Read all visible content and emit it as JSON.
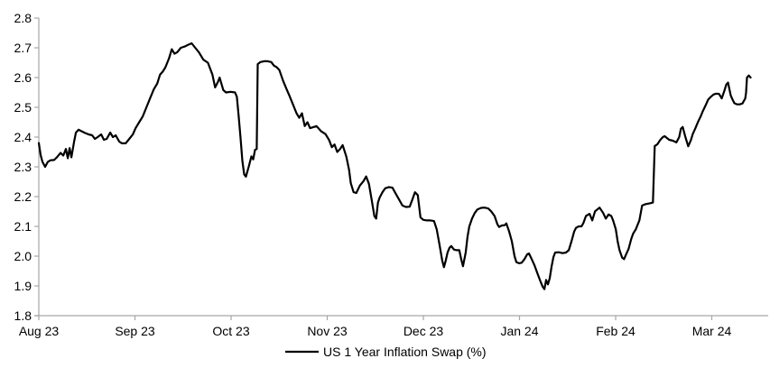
{
  "colors": {
    "line": "#000000",
    "axis": "#a6a6a6",
    "text": "#000000",
    "background": "#ffffff"
  },
  "chart_data": {
    "type": "line",
    "title": "",
    "grid": false,
    "legend_position": "bottom-center",
    "x_unit": "months since 2023-08-01 (0 = Aug 2023, 7 = Mar 2024)",
    "x_ticks": [
      {
        "m": 0,
        "label": "Aug 23"
      },
      {
        "m": 1,
        "label": "Sep 23"
      },
      {
        "m": 2,
        "label": "Oct 23"
      },
      {
        "m": 3,
        "label": "Nov 23"
      },
      {
        "m": 4,
        "label": "Dec 23"
      },
      {
        "m": 5,
        "label": "Jan 24"
      },
      {
        "m": 6,
        "label": "Feb 24"
      },
      {
        "m": 7,
        "label": "Mar 24"
      }
    ],
    "y_axis": {
      "min": 1.8,
      "max": 2.8,
      "tick_step": 0.1,
      "ticks": [
        {
          "v": 2.8,
          "label": "2.8"
        },
        {
          "v": 2.7,
          "label": "2.7"
        },
        {
          "v": 2.6,
          "label": "2.6"
        },
        {
          "v": 2.5,
          "label": "2.5"
        },
        {
          "v": 2.4,
          "label": "2.4"
        },
        {
          "v": 2.3,
          "label": "2.3"
        },
        {
          "v": 2.2,
          "label": "2.2"
        },
        {
          "v": 2.1,
          "label": "2.1"
        },
        {
          "v": 2.0,
          "label": "2.0"
        },
        {
          "v": 1.9,
          "label": "1.9"
        },
        {
          "v": 1.8,
          "label": "1.8"
        }
      ]
    },
    "series": [
      {
        "name": "US 1 Year Inflation Swap (%)",
        "color": "#000000",
        "points": [
          [
            0.0,
            2.38
          ],
          [
            0.019,
            2.34
          ],
          [
            0.038,
            2.317
          ],
          [
            0.066,
            2.3
          ],
          [
            0.094,
            2.317
          ],
          [
            0.122,
            2.322
          ],
          [
            0.16,
            2.323
          ],
          [
            0.188,
            2.332
          ],
          [
            0.226,
            2.347
          ],
          [
            0.254,
            2.338
          ],
          [
            0.282,
            2.36
          ],
          [
            0.301,
            2.329
          ],
          [
            0.32,
            2.363
          ],
          [
            0.339,
            2.332
          ],
          [
            0.367,
            2.385
          ],
          [
            0.386,
            2.415
          ],
          [
            0.414,
            2.425
          ],
          [
            0.442,
            2.42
          ],
          [
            0.48,
            2.414
          ],
          [
            0.517,
            2.409
          ],
          [
            0.555,
            2.406
          ],
          [
            0.583,
            2.394
          ],
          [
            0.612,
            2.4
          ],
          [
            0.649,
            2.409
          ],
          [
            0.677,
            2.391
          ],
          [
            0.706,
            2.394
          ],
          [
            0.743,
            2.415
          ],
          [
            0.771,
            2.4
          ],
          [
            0.8,
            2.406
          ],
          [
            0.837,
            2.385
          ],
          [
            0.865,
            2.379
          ],
          [
            0.903,
            2.379
          ],
          [
            0.941,
            2.394
          ],
          [
            0.978,
            2.409
          ],
          [
            1.007,
            2.43
          ],
          [
            1.044,
            2.45
          ],
          [
            1.082,
            2.47
          ],
          [
            1.119,
            2.5
          ],
          [
            1.157,
            2.53
          ],
          [
            1.195,
            2.56
          ],
          [
            1.232,
            2.58
          ],
          [
            1.261,
            2.61
          ],
          [
            1.289,
            2.62
          ],
          [
            1.317,
            2.635
          ],
          [
            1.355,
            2.665
          ],
          [
            1.383,
            2.695
          ],
          [
            1.411,
            2.68
          ],
          [
            1.439,
            2.685
          ],
          [
            1.477,
            2.7
          ],
          [
            1.524,
            2.705
          ],
          [
            1.552,
            2.71
          ],
          [
            1.59,
            2.715
          ],
          [
            1.627,
            2.7
          ],
          [
            1.665,
            2.685
          ],
          [
            1.712,
            2.66
          ],
          [
            1.759,
            2.65
          ],
          [
            1.806,
            2.61
          ],
          [
            1.834,
            2.567
          ],
          [
            1.863,
            2.585
          ],
          [
            1.881,
            2.6
          ],
          [
            1.919,
            2.558
          ],
          [
            1.947,
            2.55
          ],
          [
            1.994,
            2.552
          ],
          [
            2.041,
            2.55
          ],
          [
            2.06,
            2.535
          ],
          [
            2.079,
            2.47
          ],
          [
            2.098,
            2.4
          ],
          [
            2.117,
            2.32
          ],
          [
            2.136,
            2.275
          ],
          [
            2.154,
            2.267
          ],
          [
            2.183,
            2.3
          ],
          [
            2.211,
            2.335
          ],
          [
            2.23,
            2.325
          ],
          [
            2.249,
            2.357
          ],
          [
            2.267,
            2.36
          ],
          [
            2.277,
            2.645
          ],
          [
            2.305,
            2.652
          ],
          [
            2.343,
            2.655
          ],
          [
            2.38,
            2.655
          ],
          [
            2.418,
            2.652
          ],
          [
            2.446,
            2.64
          ],
          [
            2.474,
            2.635
          ],
          [
            2.502,
            2.625
          ],
          [
            2.54,
            2.59
          ],
          [
            2.578,
            2.56
          ],
          [
            2.606,
            2.54
          ],
          [
            2.643,
            2.51
          ],
          [
            2.681,
            2.48
          ],
          [
            2.709,
            2.465
          ],
          [
            2.737,
            2.48
          ],
          [
            2.766,
            2.437
          ],
          [
            2.794,
            2.45
          ],
          [
            2.822,
            2.43
          ],
          [
            2.86,
            2.434
          ],
          [
            2.888,
            2.437
          ],
          [
            2.935,
            2.42
          ],
          [
            2.982,
            2.41
          ],
          [
            3.02,
            2.39
          ],
          [
            3.048,
            2.366
          ],
          [
            3.076,
            2.375
          ],
          [
            3.104,
            2.35
          ],
          [
            3.133,
            2.36
          ],
          [
            3.161,
            2.373
          ],
          [
            3.198,
            2.335
          ],
          [
            3.227,
            2.29
          ],
          [
            3.245,
            2.245
          ],
          [
            3.274,
            2.215
          ],
          [
            3.302,
            2.212
          ],
          [
            3.339,
            2.237
          ],
          [
            3.377,
            2.252
          ],
          [
            3.405,
            2.268
          ],
          [
            3.434,
            2.243
          ],
          [
            3.462,
            2.19
          ],
          [
            3.49,
            2.135
          ],
          [
            3.509,
            2.126
          ],
          [
            3.528,
            2.18
          ],
          [
            3.546,
            2.197
          ],
          [
            3.575,
            2.215
          ],
          [
            3.603,
            2.228
          ],
          [
            3.641,
            2.232
          ],
          [
            3.678,
            2.23
          ],
          [
            3.716,
            2.208
          ],
          [
            3.753,
            2.187
          ],
          [
            3.782,
            2.17
          ],
          [
            3.819,
            2.165
          ],
          [
            3.857,
            2.166
          ],
          [
            3.885,
            2.19
          ],
          [
            3.913,
            2.215
          ],
          [
            3.942,
            2.205
          ],
          [
            3.97,
            2.13
          ],
          [
            3.998,
            2.122
          ],
          [
            4.036,
            2.12
          ],
          [
            4.073,
            2.12
          ],
          [
            4.111,
            2.118
          ],
          [
            4.139,
            2.09
          ],
          [
            4.167,
            2.04
          ],
          [
            4.196,
            1.985
          ],
          [
            4.214,
            1.963
          ],
          [
            4.233,
            1.985
          ],
          [
            4.252,
            2.012
          ],
          [
            4.271,
            2.028
          ],
          [
            4.29,
            2.034
          ],
          [
            4.318,
            2.022
          ],
          [
            4.346,
            2.02
          ],
          [
            4.374,
            2.02
          ],
          [
            4.393,
            1.99
          ],
          [
            4.412,
            1.966
          ],
          [
            4.44,
            2.012
          ],
          [
            4.459,
            2.065
          ],
          [
            4.478,
            2.1
          ],
          [
            4.506,
            2.126
          ],
          [
            4.534,
            2.145
          ],
          [
            4.562,
            2.157
          ],
          [
            4.6,
            2.162
          ],
          [
            4.638,
            2.163
          ],
          [
            4.675,
            2.16
          ],
          [
            4.704,
            2.151
          ],
          [
            4.741,
            2.135
          ],
          [
            4.769,
            2.108
          ],
          [
            4.788,
            2.098
          ],
          [
            4.816,
            2.103
          ],
          [
            4.845,
            2.104
          ],
          [
            4.863,
            2.11
          ],
          [
            4.892,
            2.083
          ],
          [
            4.92,
            2.05
          ],
          [
            4.948,
            2.0
          ],
          [
            4.967,
            1.98
          ],
          [
            4.995,
            1.976
          ],
          [
            5.023,
            1.978
          ],
          [
            5.052,
            1.99
          ],
          [
            5.08,
            2.006
          ],
          [
            5.099,
            2.009
          ],
          [
            5.127,
            1.99
          ],
          [
            5.155,
            1.97
          ],
          [
            5.183,
            1.945
          ],
          [
            5.212,
            1.92
          ],
          [
            5.24,
            1.898
          ],
          [
            5.259,
            1.889
          ],
          [
            5.277,
            1.92
          ],
          [
            5.296,
            1.905
          ],
          [
            5.315,
            1.926
          ],
          [
            5.334,
            1.966
          ],
          [
            5.353,
            1.997
          ],
          [
            5.371,
            2.012
          ],
          [
            5.409,
            2.013
          ],
          [
            5.447,
            2.01
          ],
          [
            5.484,
            2.012
          ],
          [
            5.513,
            2.02
          ],
          [
            5.541,
            2.05
          ],
          [
            5.569,
            2.083
          ],
          [
            5.588,
            2.095
          ],
          [
            5.616,
            2.1
          ],
          [
            5.644,
            2.1
          ],
          [
            5.663,
            2.11
          ],
          [
            5.691,
            2.135
          ],
          [
            5.729,
            2.142
          ],
          [
            5.757,
            2.12
          ],
          [
            5.786,
            2.151
          ],
          [
            5.814,
            2.158
          ],
          [
            5.833,
            2.163
          ],
          [
            5.87,
            2.145
          ],
          [
            5.898,
            2.126
          ],
          [
            5.927,
            2.14
          ],
          [
            5.955,
            2.135
          ],
          [
            5.974,
            2.12
          ],
          [
            6.002,
            2.09
          ],
          [
            6.021,
            2.05
          ],
          [
            6.04,
            2.02
          ],
          [
            6.068,
            1.995
          ],
          [
            6.087,
            1.99
          ],
          [
            6.115,
            2.01
          ],
          [
            6.134,
            2.024
          ],
          [
            6.162,
            2.058
          ],
          [
            6.181,
            2.075
          ],
          [
            6.209,
            2.09
          ],
          [
            6.247,
            2.12
          ],
          [
            6.275,
            2.17
          ],
          [
            6.313,
            2.175
          ],
          [
            6.35,
            2.177
          ],
          [
            6.388,
            2.18
          ],
          [
            6.407,
            2.37
          ],
          [
            6.435,
            2.376
          ],
          [
            6.463,
            2.39
          ],
          [
            6.491,
            2.4
          ],
          [
            6.51,
            2.403
          ],
          [
            6.557,
            2.391
          ],
          [
            6.595,
            2.388
          ],
          [
            6.632,
            2.382
          ],
          [
            6.661,
            2.4
          ],
          [
            6.679,
            2.428
          ],
          [
            6.698,
            2.434
          ],
          [
            6.726,
            2.4
          ],
          [
            6.755,
            2.369
          ],
          [
            6.783,
            2.39
          ],
          [
            6.802,
            2.41
          ],
          [
            6.83,
            2.43
          ],
          [
            6.858,
            2.452
          ],
          [
            6.886,
            2.471
          ],
          [
            6.905,
            2.486
          ],
          [
            6.933,
            2.505
          ],
          [
            6.962,
            2.526
          ],
          [
            6.99,
            2.535
          ],
          [
            7.018,
            2.543
          ],
          [
            7.046,
            2.546
          ],
          [
            7.075,
            2.545
          ],
          [
            7.103,
            2.53
          ],
          [
            7.131,
            2.556
          ],
          [
            7.15,
            2.576
          ],
          [
            7.169,
            2.583
          ],
          [
            7.197,
            2.54
          ],
          [
            7.216,
            2.526
          ],
          [
            7.235,
            2.514
          ],
          [
            7.263,
            2.51
          ],
          [
            7.291,
            2.51
          ],
          [
            7.319,
            2.513
          ],
          [
            7.348,
            2.53
          ],
          [
            7.357,
            2.55
          ],
          [
            7.366,
            2.6
          ],
          [
            7.385,
            2.607
          ],
          [
            7.404,
            2.6
          ]
        ]
      }
    ],
    "legend": [
      {
        "name": "US 1 Year Inflation Swap (%)",
        "color": "#000000"
      }
    ]
  }
}
